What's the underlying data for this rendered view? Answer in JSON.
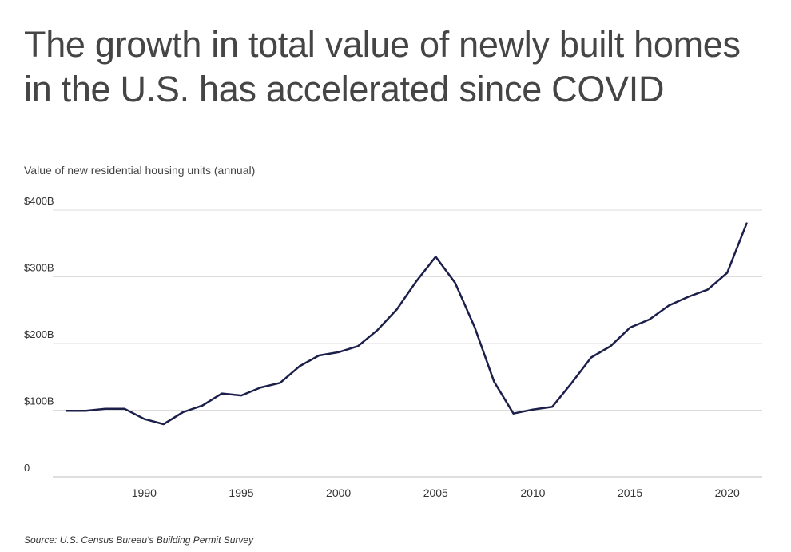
{
  "title": "The growth in total value of newly built homes in the U.S. has accelerated since COVID",
  "subtitle": "Value of new residential housing units (annual)",
  "source": "Source:  U.S. Census Bureau's Building Permit Survey",
  "colors": {
    "line": "#1c1f4a",
    "grid": "#dcdcdc",
    "text": "#3d3d3d"
  },
  "chart_data": {
    "type": "line",
    "ylabel": "Value of new residential housing units (annual)",
    "xlabel": "",
    "ylim": [
      0,
      400
    ],
    "xlim": [
      1985.3,
      2021.8
    ],
    "grid": "horizontal",
    "y_ticks": [
      {
        "value": 0,
        "label": "0"
      },
      {
        "value": 100,
        "label": "$100B"
      },
      {
        "value": 200,
        "label": "$200B"
      },
      {
        "value": 300,
        "label": "$300B"
      },
      {
        "value": 400,
        "label": "$400B"
      }
    ],
    "x_ticks": [
      {
        "value": 1990,
        "label": "1990"
      },
      {
        "value": 1995,
        "label": "1995"
      },
      {
        "value": 2000,
        "label": "2000"
      },
      {
        "value": 2005,
        "label": "2005"
      },
      {
        "value": 2010,
        "label": "2010"
      },
      {
        "value": 2015,
        "label": "2015"
      },
      {
        "value": 2020,
        "label": "2020"
      }
    ],
    "series": [
      {
        "x": [
          1986,
          1987,
          1988,
          1989,
          1990,
          1991,
          1992,
          1993,
          1994,
          1995,
          1996,
          1997,
          1998,
          1999,
          2000,
          2001,
          2002,
          2003,
          2004,
          2005,
          2006,
          2007,
          2008,
          2009,
          2010,
          2011,
          2012,
          2013,
          2014,
          2015,
          2016,
          2017,
          2018,
          2019,
          2020,
          2021
        ],
        "values": [
          99,
          99,
          102,
          102,
          87,
          79,
          97,
          107,
          125,
          122,
          134,
          141,
          166,
          182,
          187,
          196,
          220,
          251,
          293,
          330,
          291,
          225,
          143,
          95,
          101,
          105,
          141,
          179,
          196,
          224,
          236,
          257,
          270,
          281,
          306,
          380
        ]
      }
    ]
  }
}
